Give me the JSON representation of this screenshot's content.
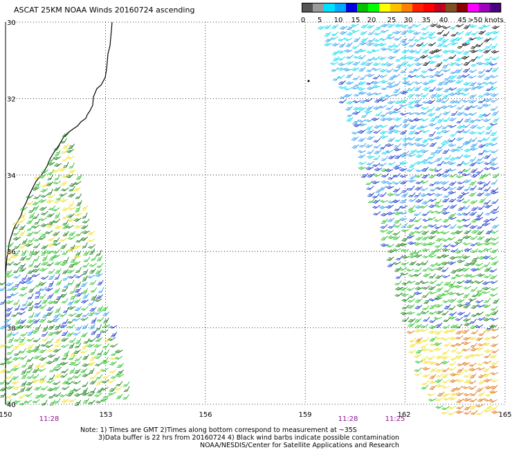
{
  "title": "ASCAT 25KM NOAA Winds 20160724 ascending",
  "colorbar": {
    "labels": [
      "0",
      "5",
      "10",
      "15",
      "20",
      "25",
      "30",
      "35",
      "40",
      "45",
      ">50 knots"
    ],
    "colors": [
      "#555555",
      "#9a9a9a",
      "#00e0ff",
      "#00a8ff",
      "#0000e0",
      "#00c000",
      "#00ff00",
      "#ffff00",
      "#ffc000",
      "#ff8000",
      "#ff2000",
      "#ff0000",
      "#c00020",
      "#805020",
      "#8b0000",
      "#ff00ff",
      "#a000c0",
      "#4b0082"
    ]
  },
  "axes": {
    "lon_ticks": [
      "150",
      "153",
      "156",
      "159",
      "162",
      "165"
    ],
    "lat_ticks": [
      "-30",
      "-32",
      "-34",
      "-36",
      "-38",
      "-40"
    ],
    "lat_tick_display": [
      "30",
      "32",
      "34",
      "36",
      "38",
      "40"
    ],
    "lon_range": [
      150,
      165
    ],
    "lat_range": [
      -30,
      -40
    ]
  },
  "times": [
    "11:28",
    "11:28",
    "11:25"
  ],
  "notes": {
    "line1": "Note: 1) Times are GMT 2)Times along bottom correspond to measurement at ~35S",
    "line2": "3)Data buffer is 22 hrs from 20160724 4) Black wind barbs indicate possible contamination",
    "line3": "NOAA/NESDIS/Center for Satellite Applications and Research"
  },
  "palette": {
    "black": "#000000",
    "cyan": "#00d8f0",
    "light_blue": "#2a9cf0",
    "blue": "#1030d0",
    "dark_green": "#107a10",
    "green": "#20c020",
    "yellow": "#f0e020",
    "orange": "#e07010",
    "grid": "#000000"
  }
}
